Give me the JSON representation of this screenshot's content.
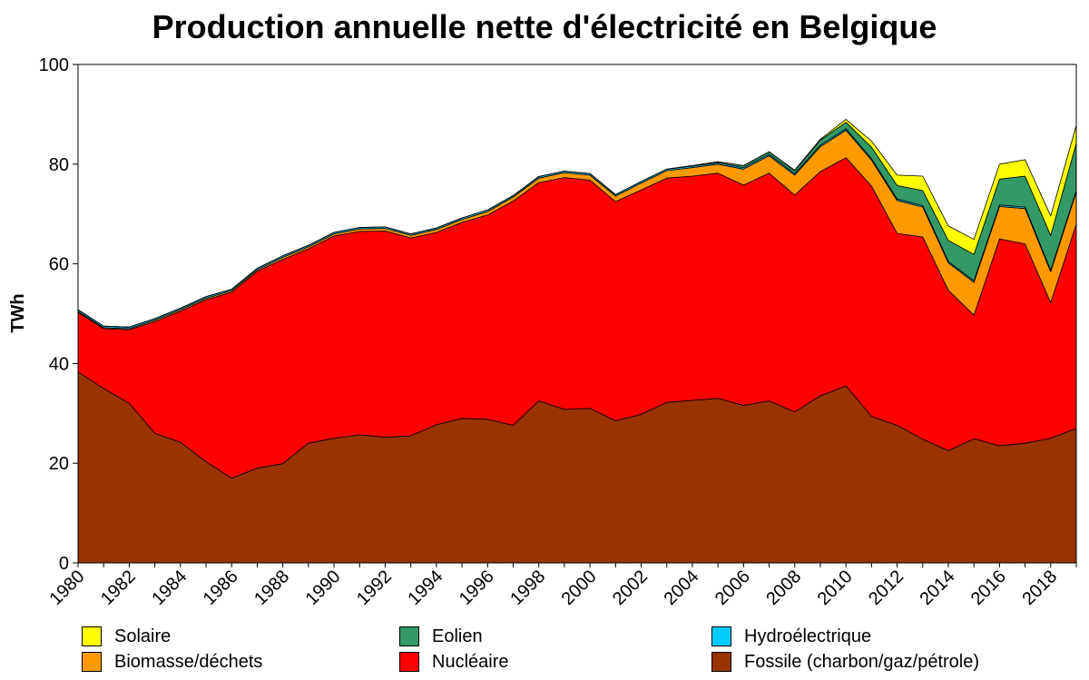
{
  "chart_data": {
    "type": "area",
    "stacked": true,
    "title": "Production annuelle nette d'électricité en Belgique",
    "ylabel": "TWh",
    "xlabel": "",
    "xlim": [
      1980,
      2019
    ],
    "ylim": [
      0,
      100
    ],
    "yticks": [
      0,
      20,
      40,
      60,
      80,
      100
    ],
    "xticks": [
      1980,
      1982,
      1984,
      1986,
      1988,
      1990,
      1992,
      1994,
      1996,
      1998,
      2000,
      2002,
      2004,
      2006,
      2008,
      2010,
      2012,
      2014,
      2016,
      2018
    ],
    "grid": false,
    "legend_position": "bottom",
    "x": [
      1980,
      1981,
      1982,
      1983,
      1984,
      1985,
      1986,
      1987,
      1988,
      1989,
      1990,
      1991,
      1992,
      1993,
      1994,
      1995,
      1996,
      1997,
      1998,
      1999,
      2000,
      2001,
      2002,
      2003,
      2004,
      2005,
      2006,
      2007,
      2008,
      2009,
      2010,
      2011,
      2012,
      2013,
      2014,
      2015,
      2016,
      2017,
      2018,
      2019
    ],
    "series": [
      {
        "name": "Fossile (charbon/gaz/pétrole)",
        "color": "#993300",
        "values": [
          38.3,
          35.0,
          32.0,
          26.0,
          24.2,
          20.3,
          17.0,
          19.0,
          19.9,
          24.0,
          25.0,
          25.7,
          25.2,
          25.5,
          27.7,
          29.0,
          28.8,
          27.6,
          32.5,
          30.8,
          31.0,
          28.5,
          29.8,
          32.2,
          32.6,
          33.0,
          31.6,
          32.5,
          30.3,
          33.5,
          35.5,
          29.4,
          27.6,
          24.8,
          22.5,
          24.9,
          23.5,
          24.0,
          25.0,
          27.0
        ]
      },
      {
        "name": "Nucléaire",
        "color": "#ff0000",
        "values": [
          12.0,
          12.0,
          14.8,
          22.4,
          26.3,
          32.5,
          37.3,
          39.5,
          41.0,
          39.0,
          40.6,
          40.8,
          41.4,
          39.7,
          38.6,
          39.3,
          41.0,
          45.0,
          43.8,
          46.5,
          45.8,
          44.0,
          45.0,
          45.0,
          45.0,
          45.2,
          44.2,
          45.7,
          43.5,
          45.0,
          45.8,
          46.2,
          38.5,
          40.6,
          32.2,
          24.8,
          41.5,
          40.0,
          27.2,
          41.0
        ]
      },
      {
        "name": "Biomasse/déchets",
        "color": "#ff9900",
        "values": [
          0.2,
          0.2,
          0.2,
          0.3,
          0.3,
          0.3,
          0.3,
          0.3,
          0.4,
          0.4,
          0.4,
          0.5,
          0.5,
          0.5,
          0.6,
          0.6,
          0.7,
          0.8,
          0.9,
          1.0,
          1.0,
          1.1,
          1.4,
          1.5,
          1.7,
          1.8,
          3.2,
          3.5,
          4.0,
          5.0,
          5.5,
          5.2,
          6.6,
          6.0,
          5.5,
          6.6,
          6.5,
          7.1,
          6.2,
          6.4
        ]
      },
      {
        "name": "Hydroélectrique",
        "color": "#00ccff",
        "values": [
          0.3,
          0.3,
          0.3,
          0.3,
          0.3,
          0.3,
          0.3,
          0.3,
          0.3,
          0.3,
          0.3,
          0.3,
          0.3,
          0.3,
          0.3,
          0.3,
          0.3,
          0.3,
          0.3,
          0.3,
          0.3,
          0.3,
          0.3,
          0.3,
          0.3,
          0.3,
          0.3,
          0.3,
          0.3,
          0.3,
          0.3,
          0.3,
          0.3,
          0.3,
          0.3,
          0.3,
          0.3,
          0.3,
          0.3,
          0.3
        ]
      },
      {
        "name": "Eolien",
        "color": "#339966",
        "values": [
          0,
          0,
          0,
          0,
          0,
          0,
          0,
          0,
          0,
          0,
          0,
          0,
          0,
          0,
          0,
          0,
          0,
          0,
          0,
          0,
          0,
          0,
          0,
          0,
          0.1,
          0.2,
          0.4,
          0.5,
          0.6,
          1.0,
          1.3,
          2.3,
          2.7,
          3.0,
          4.2,
          5.3,
          5.2,
          6.2,
          7.0,
          9.5
        ]
      },
      {
        "name": "Solaire",
        "color": "#ffff00",
        "values": [
          0,
          0,
          0,
          0,
          0,
          0,
          0,
          0,
          0,
          0,
          0,
          0,
          0,
          0,
          0,
          0,
          0,
          0,
          0,
          0,
          0,
          0,
          0,
          0,
          0,
          0,
          0,
          0,
          0.1,
          0.2,
          0.6,
          1.2,
          2.1,
          2.9,
          2.9,
          3.0,
          3.0,
          3.3,
          3.9,
          3.6
        ]
      }
    ]
  },
  "legend": {
    "items": [
      {
        "label": "Solaire",
        "color": "#ffff00"
      },
      {
        "label": "Biomasse/déchets",
        "color": "#ff9900"
      },
      {
        "label": "Eolien",
        "color": "#339966"
      },
      {
        "label": "Nucléaire",
        "color": "#ff0000"
      },
      {
        "label": "Hydroélectrique",
        "color": "#00ccff"
      },
      {
        "label": "Fossile (charbon/gaz/pétrole)",
        "color": "#993300"
      }
    ]
  }
}
